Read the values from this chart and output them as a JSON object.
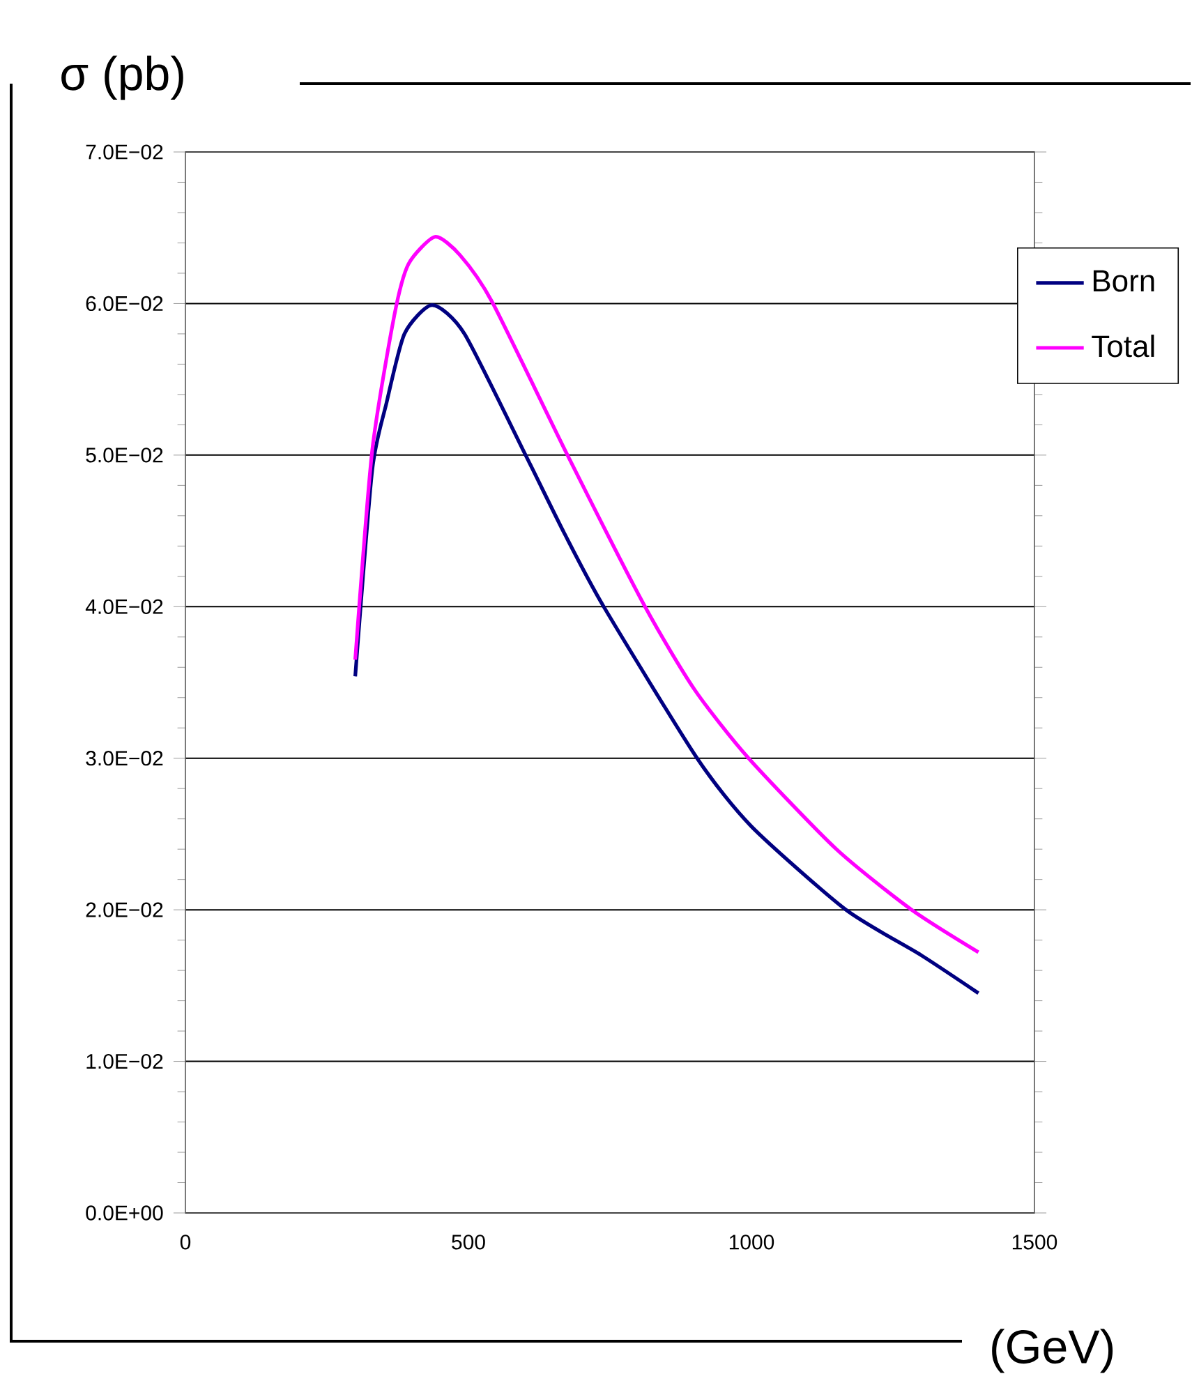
{
  "chart_data": {
    "type": "line",
    "ylabel": "σ (pb)",
    "xlabel": "(GeV)",
    "xlim": [
      0,
      1500
    ],
    "xticks": [
      0,
      500,
      1000,
      1500
    ],
    "ylim": [
      0,
      0.07
    ],
    "yticks": [
      {
        "value": 0,
        "label": "0.0E+00"
      },
      {
        "value": 0.01,
        "label": "1.0E−02"
      },
      {
        "value": 0.02,
        "label": "2.0E−02"
      },
      {
        "value": 0.03,
        "label": "3.0E−02"
      },
      {
        "value": 0.04,
        "label": "4.0E−02"
      },
      {
        "value": 0.05,
        "label": "5.0E−02"
      },
      {
        "value": 0.06,
        "label": "6.0E−02"
      },
      {
        "value": 0.07,
        "label": "7.0E−02"
      }
    ],
    "grid": "y",
    "legend": "top right",
    "line_style": "solid",
    "series": [
      {
        "name": "Born",
        "color": "#000080",
        "x": [
          300,
          330,
          355,
          387,
          436,
          493,
          601,
          670,
          739,
          904,
          1000,
          1167,
          1300,
          1401
        ],
        "values": [
          0.0354,
          0.049,
          0.0534,
          0.058,
          0.0599,
          0.058,
          0.05,
          0.0448,
          0.04,
          0.03,
          0.0255,
          0.02,
          0.017,
          0.0145
        ]
      },
      {
        "name": "Total",
        "color": "#ff00ff",
        "x": [
          300,
          330,
          369,
          394,
          441,
          485,
          542,
          675,
          812,
          900,
          995,
          1150,
          1283,
          1401
        ],
        "values": [
          0.0365,
          0.0503,
          0.0592,
          0.0626,
          0.0644,
          0.0632,
          0.0601,
          0.05,
          0.04,
          0.0345,
          0.03,
          0.024,
          0.02,
          0.0172
        ]
      }
    ]
  }
}
